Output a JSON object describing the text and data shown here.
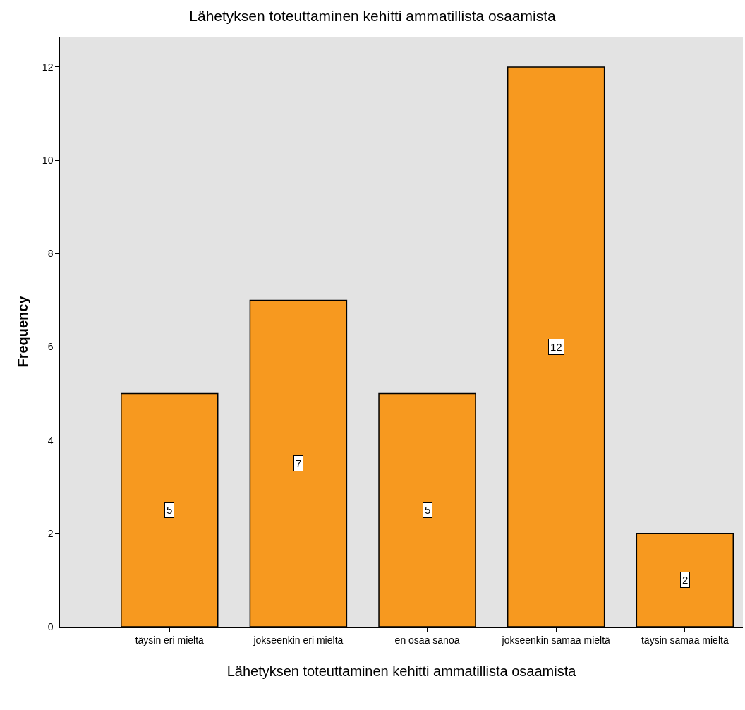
{
  "chart_data": {
    "type": "bar",
    "title": "Lähetyksen toteuttaminen kehitti ammatillista osaamista",
    "xlabel": "Lähetyksen toteuttaminen kehitti ammatillista osaamista",
    "ylabel": "Frequency",
    "categories": [
      "täysin eri mieltä",
      "jokseenkin eri mieltä",
      "en osaa sanoa",
      "jokseenkin samaa mieltä",
      "täysin samaa mieltä"
    ],
    "values": [
      5,
      7,
      5,
      12,
      2
    ],
    "color": "#f7991f",
    "data_labels": true,
    "grid": false,
    "ylim": [
      0,
      12.65
    ],
    "yticks": [
      0,
      2,
      4,
      6,
      8,
      10,
      12
    ]
  }
}
